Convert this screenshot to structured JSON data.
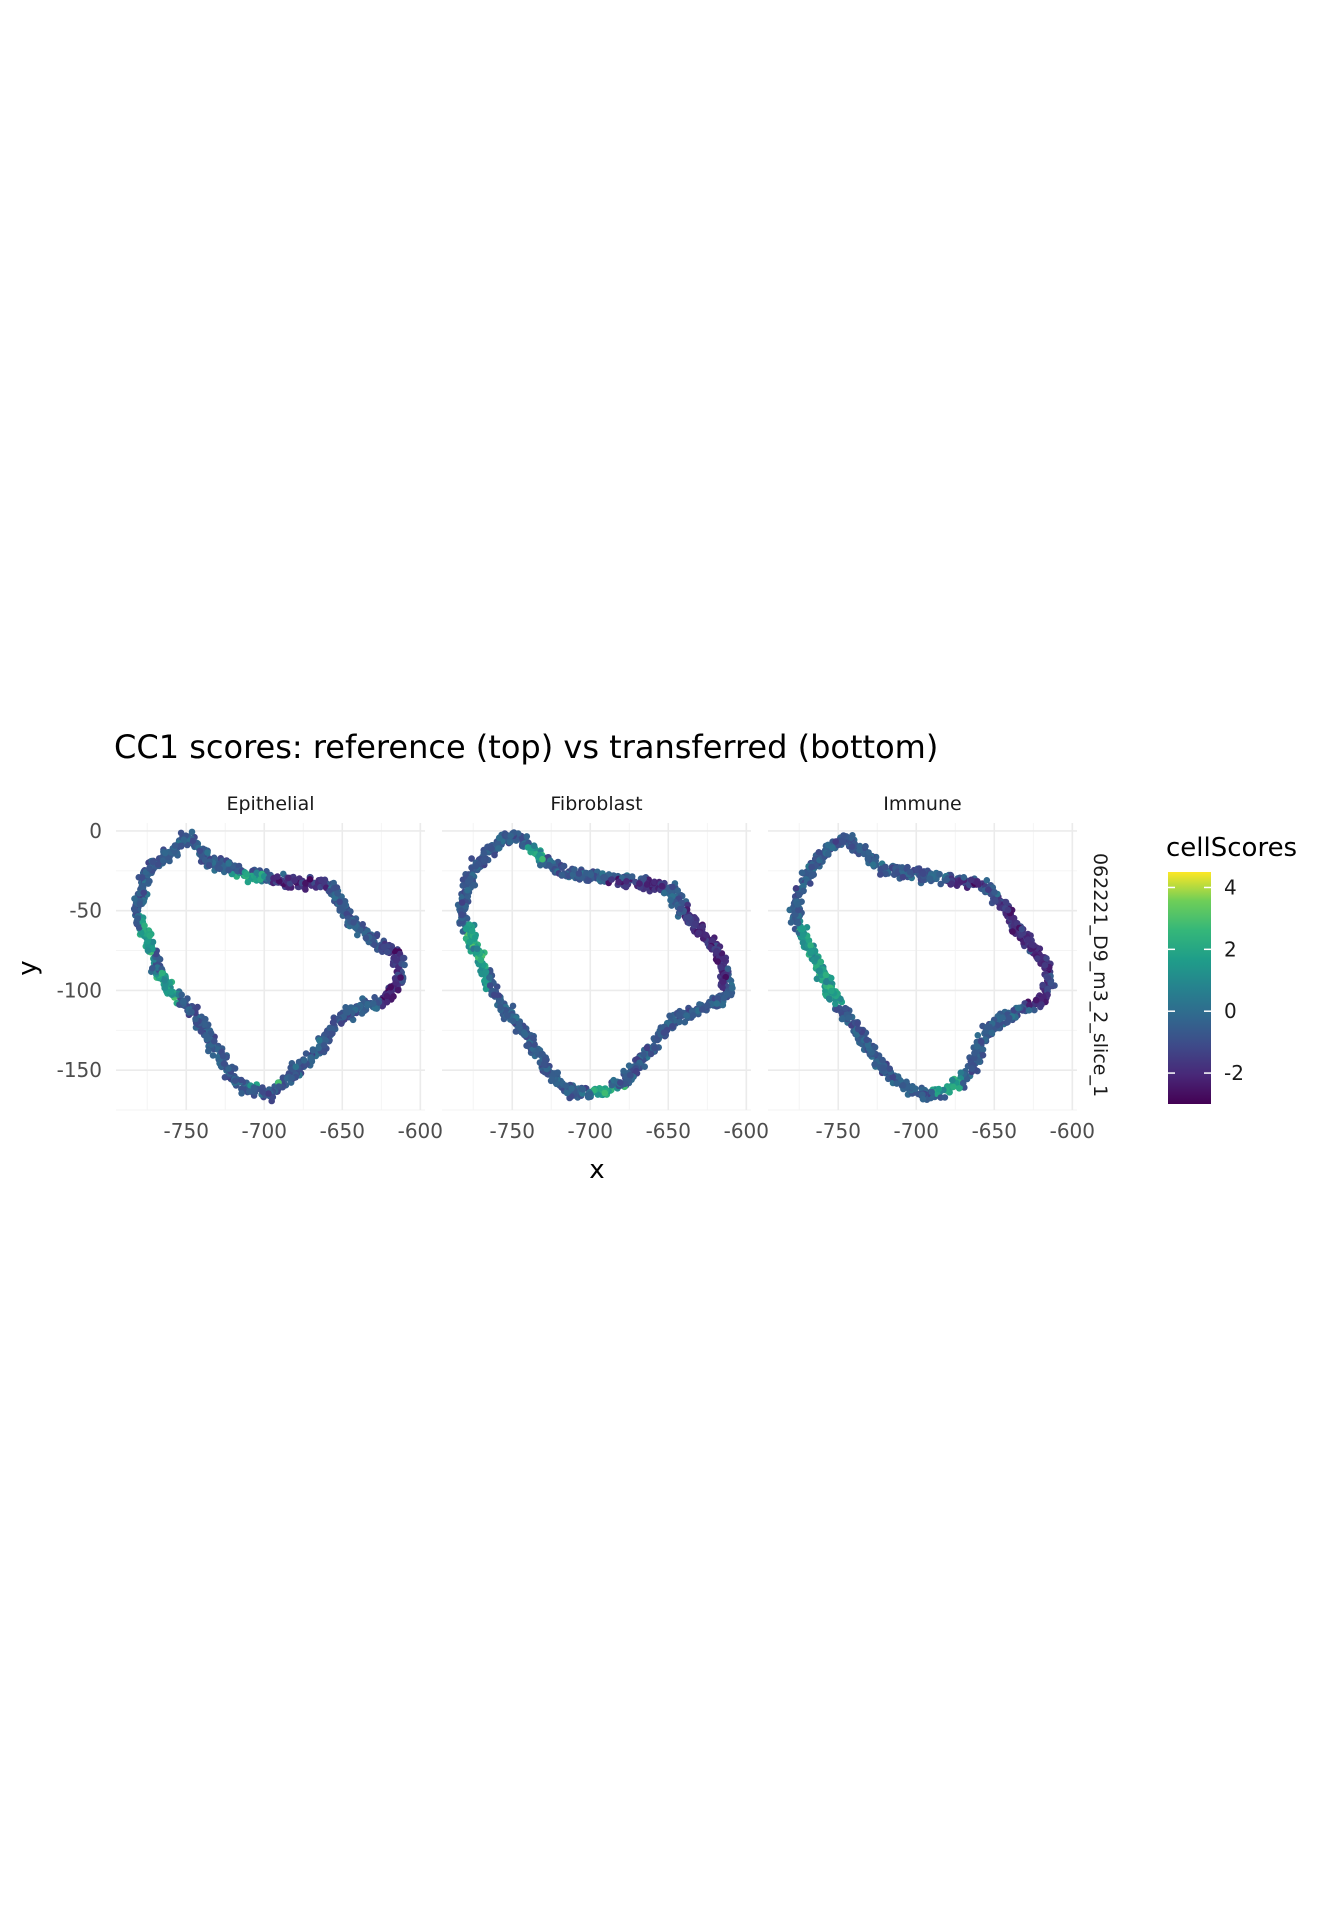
{
  "chart_data": {
    "type": "scatter",
    "title": "CC1 scores: reference (top) vs transferred (bottom)",
    "xlabel": "x",
    "ylabel": "y",
    "xlim": [
      -795,
      -597
    ],
    "ylim": [
      -175,
      5
    ],
    "x_ticks": [
      -750,
      -700,
      -650,
      -600
    ],
    "x_tick_labels": [
      "-750",
      "-700",
      "-650",
      "-600"
    ],
    "y_ticks": [
      0,
      -50,
      -100,
      -150
    ],
    "y_tick_labels": [
      "0",
      "-50",
      "-100",
      "-150"
    ],
    "row_strip": "062221_D9_m3_2_slice_1",
    "grid": true,
    "legend": {
      "title": "cellScores",
      "position": "right",
      "range": [
        -3,
        4.5
      ],
      "ticks": [
        4,
        2,
        0,
        -2
      ],
      "tick_labels": [
        "4",
        "2",
        "0",
        "-2"
      ],
      "colormap": "viridis"
    },
    "panels": [
      {
        "name": "Epithelial",
        "outline": [
          [
            -750,
            -3
          ],
          [
            -742,
            -10
          ],
          [
            -735,
            -20
          ],
          [
            -725,
            -22
          ],
          [
            -715,
            -26
          ],
          [
            -705,
            -28
          ],
          [
            -695,
            -30
          ],
          [
            -685,
            -32
          ],
          [
            -675,
            -33
          ],
          [
            -665,
            -32
          ],
          [
            -658,
            -35
          ],
          [
            -652,
            -45
          ],
          [
            -645,
            -55
          ],
          [
            -635,
            -65
          ],
          [
            -625,
            -72
          ],
          [
            -615,
            -78
          ],
          [
            -612,
            -90
          ],
          [
            -618,
            -100
          ],
          [
            -622,
            -105
          ],
          [
            -628,
            -108
          ],
          [
            -640,
            -110
          ],
          [
            -652,
            -118
          ],
          [
            -660,
            -130
          ],
          [
            -668,
            -140
          ],
          [
            -680,
            -150
          ],
          [
            -688,
            -158
          ],
          [
            -695,
            -165
          ],
          [
            -705,
            -163
          ],
          [
            -715,
            -160
          ],
          [
            -722,
            -152
          ],
          [
            -730,
            -140
          ],
          [
            -735,
            -130
          ],
          [
            -742,
            -118
          ],
          [
            -752,
            -108
          ],
          [
            -762,
            -98
          ],
          [
            -768,
            -88
          ],
          [
            -772,
            -75
          ],
          [
            -777,
            -62
          ],
          [
            -782,
            -50
          ],
          [
            -778,
            -38
          ],
          [
            -775,
            -25
          ],
          [
            -765,
            -18
          ],
          [
            -758,
            -12
          ],
          [
            -750,
            -3
          ]
        ],
        "hot": [
          [
            [
              -780,
              -50
            ],
            [
              -770,
              -85
            ]
          ],
          [
            [
              -770,
              -88
            ],
            [
              -755,
              -112
            ]
          ],
          [
            [
              -710,
              -150
            ],
            [
              -690,
              -160
            ]
          ],
          [
            [
              -725,
              -26
            ],
            [
              -700,
              -32
            ]
          ]
        ],
        "cold": [
          [
            [
              -695,
              -28
            ],
            [
              -660,
              -42
            ]
          ],
          [
            [
              -625,
              -70
            ],
            [
              -612,
              -110
            ]
          ]
        ]
      },
      {
        "name": "Fibroblast",
        "outline": [
          [
            -750,
            -3
          ],
          [
            -740,
            -8
          ],
          [
            -730,
            -18
          ],
          [
            -720,
            -25
          ],
          [
            -705,
            -28
          ],
          [
            -690,
            -30
          ],
          [
            -675,
            -32
          ],
          [
            -660,
            -33
          ],
          [
            -648,
            -36
          ],
          [
            -642,
            -48
          ],
          [
            -632,
            -60
          ],
          [
            -622,
            -70
          ],
          [
            -615,
            -82
          ],
          [
            -612,
            -95
          ],
          [
            -615,
            -105
          ],
          [
            -625,
            -110
          ],
          [
            -640,
            -115
          ],
          [
            -650,
            -122
          ],
          [
            -660,
            -135
          ],
          [
            -670,
            -148
          ],
          [
            -680,
            -158
          ],
          [
            -690,
            -163
          ],
          [
            -700,
            -165
          ],
          [
            -715,
            -163
          ],
          [
            -722,
            -155
          ],
          [
            -730,
            -145
          ],
          [
            -738,
            -132
          ],
          [
            -748,
            -120
          ],
          [
            -758,
            -108
          ],
          [
            -765,
            -95
          ],
          [
            -770,
            -82
          ],
          [
            -776,
            -68
          ],
          [
            -782,
            -52
          ],
          [
            -780,
            -38
          ],
          [
            -775,
            -25
          ],
          [
            -768,
            -15
          ],
          [
            -760,
            -8
          ],
          [
            -750,
            -3
          ]
        ],
        "hot": [
          [
            [
              -780,
              -55
            ],
            [
              -765,
              -110
            ]
          ],
          [
            [
              -700,
              -160
            ],
            [
              -675,
              -166
            ]
          ],
          [
            [
              -742,
              -8
            ],
            [
              -728,
              -20
            ]
          ]
        ],
        "cold": [
          [
            [
              -640,
              -45
            ],
            [
              -612,
              -100
            ]
          ],
          [
            [
              -690,
              -30
            ],
            [
              -650,
              -38
            ]
          ]
        ]
      },
      {
        "name": "Immune",
        "outline": [
          [
            -745,
            -5
          ],
          [
            -735,
            -12
          ],
          [
            -725,
            -22
          ],
          [
            -710,
            -26
          ],
          [
            -695,
            -28
          ],
          [
            -680,
            -30
          ],
          [
            -665,
            -32
          ],
          [
            -655,
            -35
          ],
          [
            -645,
            -45
          ],
          [
            -638,
            -58
          ],
          [
            -628,
            -70
          ],
          [
            -618,
            -82
          ],
          [
            -614,
            -95
          ],
          [
            -618,
            -105
          ],
          [
            -628,
            -110
          ],
          [
            -640,
            -115
          ],
          [
            -652,
            -122
          ],
          [
            -660,
            -135
          ],
          [
            -665,
            -148
          ],
          [
            -672,
            -158
          ],
          [
            -682,
            -163
          ],
          [
            -695,
            -165
          ],
          [
            -708,
            -160
          ],
          [
            -718,
            -152
          ],
          [
            -728,
            -140
          ],
          [
            -735,
            -128
          ],
          [
            -745,
            -115
          ],
          [
            -752,
            -105
          ],
          [
            -760,
            -92
          ],
          [
            -765,
            -80
          ],
          [
            -772,
            -65
          ],
          [
            -778,
            -52
          ],
          [
            -775,
            -38
          ],
          [
            -768,
            -25
          ],
          [
            -760,
            -15
          ],
          [
            -752,
            -8
          ],
          [
            -745,
            -5
          ]
        ],
        "hot": [
          [
            [
              -775,
              -55
            ],
            [
              -745,
              -110
            ]
          ],
          [
            [
              -690,
              -155
            ],
            [
              -670,
              -165
            ]
          ]
        ],
        "cold": [
          [
            [
              -650,
              -40
            ],
            [
              -614,
              -110
            ]
          ],
          [
            [
              -680,
              -30
            ],
            [
              -655,
              -36
            ]
          ]
        ]
      }
    ]
  }
}
